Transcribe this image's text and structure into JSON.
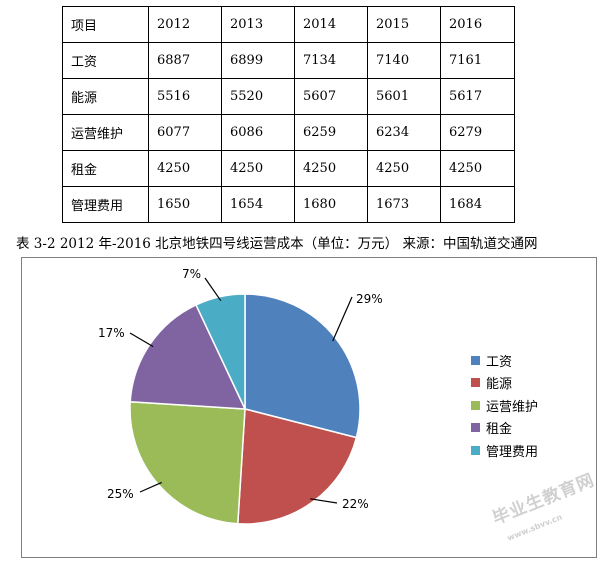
{
  "table": {
    "header": [
      "项目",
      "2012",
      "2013",
      "2014",
      "2015",
      "2016"
    ],
    "rows": [
      [
        "工资",
        "6887",
        "6899",
        "7134",
        "7140",
        "7161"
      ],
      [
        "能源",
        "5516",
        "5520",
        "5607",
        "5601",
        "5617"
      ],
      [
        "运营维护",
        "6077",
        "6086",
        "6259",
        "6234",
        "6279"
      ],
      [
        "租金",
        "4250",
        "4250",
        "4250",
        "4250",
        "4250"
      ],
      [
        "管理费用",
        "1650",
        "1654",
        "1680",
        "1673",
        "1684"
      ]
    ]
  },
  "caption": "表 3-2 2012 年-2016 北京地铁四号线运营成本（单位：万元）  来源：中国轨道交通网",
  "chart_data": {
    "type": "pie",
    "categories": [
      "工资",
      "能源",
      "运营维护",
      "租金",
      "管理费用"
    ],
    "values": [
      29,
      22,
      25,
      17,
      7
    ],
    "labels": [
      "29%",
      "22%",
      "25%",
      "17%",
      "7%"
    ],
    "colors": [
      "#4f81bd",
      "#c0504d",
      "#9bbb59",
      "#8064a2",
      "#4bacc6"
    ],
    "legend_position": "right"
  },
  "watermark": {
    "main": "毕业生教育网",
    "sub": "www.sbvv.cn"
  }
}
